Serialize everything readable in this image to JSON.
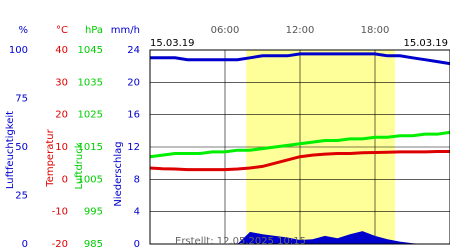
{
  "chart_data": {
    "type": "line",
    "date_start": "15.03.19",
    "date_end": "15.03.19",
    "footer": "Erstellt: 12.05.2025 10:15",
    "xlim": [
      0,
      24
    ],
    "xticks": [
      {
        "value": 6,
        "label": "06:00"
      },
      {
        "value": 12,
        "label": "12:00"
      },
      {
        "value": 18,
        "label": "18:00"
      }
    ],
    "highlight_x": [
      7.7,
      19.6
    ],
    "grid": true,
    "axes": [
      {
        "unit": "%",
        "title": "Luftfeuchtigkeit",
        "color": "#0000cc",
        "ylim": [
          0,
          100
        ],
        "yticks": [
          0,
          25,
          50,
          75,
          100
        ]
      },
      {
        "unit": "°C",
        "title": "Temperatur",
        "color": "#dd0000",
        "ylim": [
          -20,
          40
        ],
        "yticks": [
          -20,
          -10,
          0,
          10,
          20,
          30,
          40
        ]
      },
      {
        "unit": "hPa",
        "title": "Luftdruck",
        "color": "#00cc00",
        "ylim": [
          985,
          1045
        ],
        "yticks": [
          985,
          995,
          1005,
          1015,
          1025,
          1035,
          1045
        ]
      },
      {
        "unit": "mm/h",
        "title": "Niederschlag",
        "color": "#0000cc",
        "ylim": [
          0,
          24
        ],
        "yticks": [
          0,
          4,
          8,
          12,
          16,
          20,
          24
        ]
      }
    ],
    "x": [
      0,
      1,
      2,
      3,
      4,
      5,
      6,
      7,
      8,
      9,
      10,
      11,
      12,
      13,
      14,
      15,
      16,
      17,
      18,
      19,
      20,
      21,
      22,
      23,
      24
    ],
    "series": [
      {
        "name": "Luftfeuchtigkeit",
        "axis": 0,
        "color": "#0000cc",
        "kind": "line",
        "values": [
          96,
          96,
          96,
          95,
          95,
          95,
          95,
          95,
          96,
          97,
          97,
          97,
          98,
          98,
          98,
          98,
          98,
          98,
          98,
          97,
          97,
          96,
          95,
          94,
          93
        ]
      },
      {
        "name": "Temperatur",
        "axis": 1,
        "color": "#dd0000",
        "kind": "line",
        "values": [
          3.5,
          3.3,
          3.2,
          3,
          3,
          3,
          3,
          3.2,
          3.5,
          4,
          5,
          6,
          7,
          7.5,
          7.8,
          8,
          8,
          8.2,
          8.3,
          8.4,
          8.5,
          8.5,
          8.5,
          8.6,
          8.6
        ]
      },
      {
        "name": "Luftdruck",
        "axis": 2,
        "color": "#00ee00",
        "kind": "line",
        "values": [
          1012,
          1012.5,
          1013,
          1013,
          1013,
          1013.5,
          1013.5,
          1014,
          1014,
          1014.5,
          1015,
          1015.5,
          1016,
          1016.5,
          1017,
          1017,
          1017.5,
          1017.5,
          1018,
          1018,
          1018.5,
          1018.5,
          1019,
          1019,
          1019.5
        ]
      },
      {
        "name": "Niederschlag",
        "axis": 3,
        "color": "#0000cc",
        "kind": "area",
        "values": [
          0,
          0,
          0,
          0,
          0,
          0,
          0,
          0,
          1.5,
          1.2,
          1,
          0.8,
          0.5,
          0.6,
          1,
          0.7,
          1.2,
          1.6,
          1,
          0.6,
          0.3,
          0.1,
          0,
          0,
          0
        ]
      }
    ]
  }
}
